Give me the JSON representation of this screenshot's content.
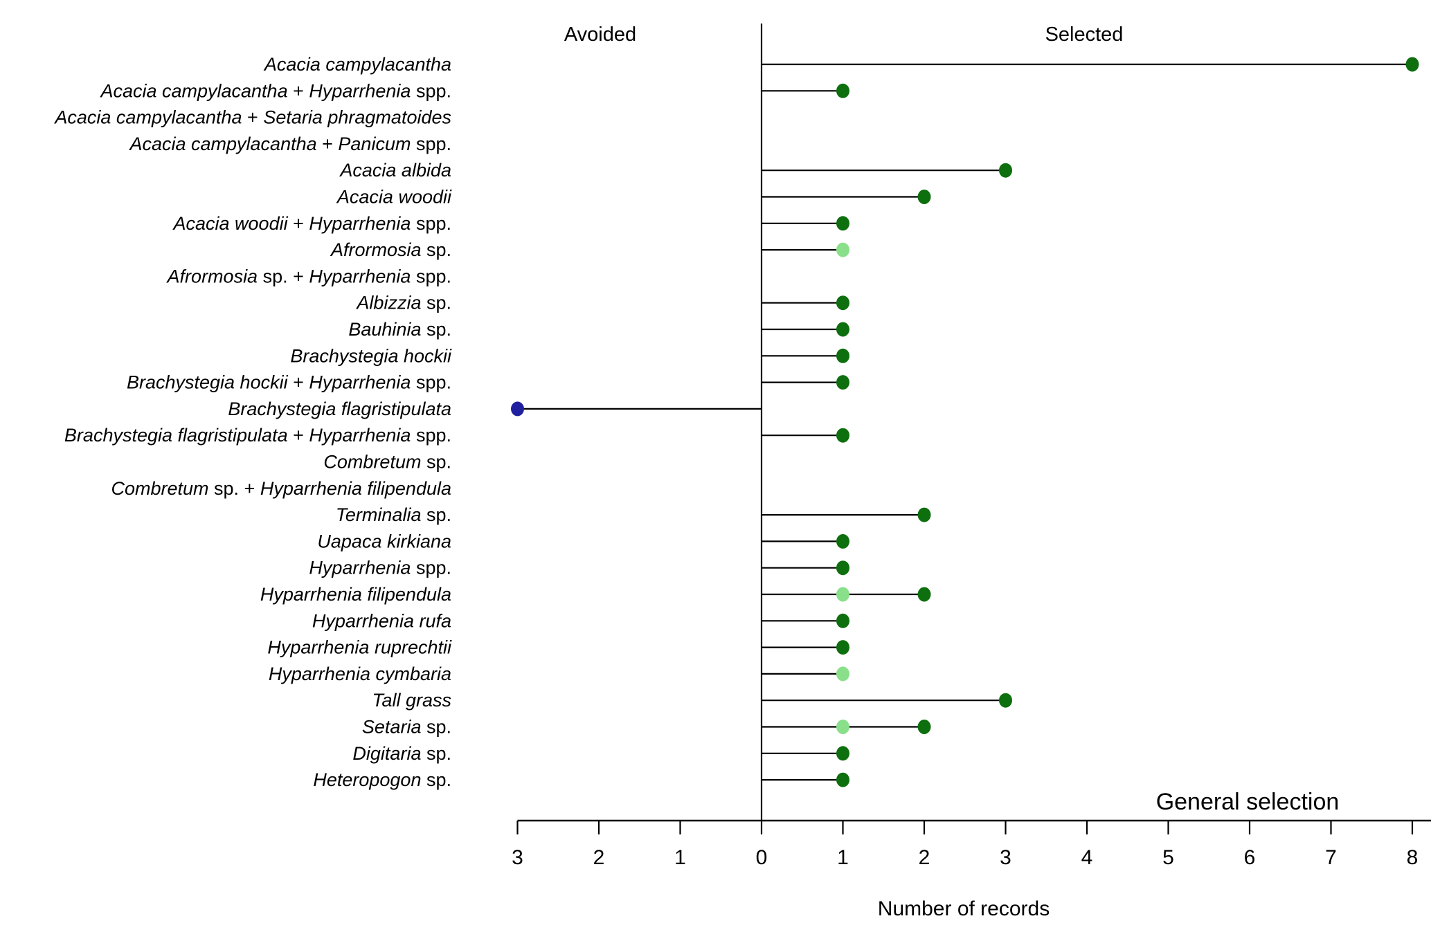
{
  "chart_data": {
    "type": "lollipop",
    "orientation": "horizontal-diverging",
    "section_labels": {
      "left": "Avoided",
      "right": "Selected"
    },
    "xlabel": "Number of records",
    "annotation": "General selection",
    "axis": {
      "tick_values": [
        -3,
        -2,
        -1,
        0,
        1,
        2,
        3,
        4,
        5,
        6,
        7,
        8
      ],
      "tick_labels": [
        "3",
        "2",
        "1",
        "0",
        "1",
        "2",
        "3",
        "4",
        "5",
        "6",
        "7",
        "8"
      ],
      "xlim": [
        -3,
        8.5
      ],
      "grid": false
    },
    "colors": {
      "selected_dark": "#0d6f0d",
      "selected_light": "#8ae08a",
      "avoided_blue": "#1f1f9f",
      "axis_line": "#000000",
      "text": "#000000",
      "background": "#ffffff"
    },
    "rows": [
      {
        "label_plain": "Acacia campylacantha",
        "label_segments": [
          {
            "text": "Acacia campylacantha",
            "italic": true
          }
        ],
        "points": [
          {
            "value": 8,
            "side": "selected",
            "color": "selected_dark"
          }
        ]
      },
      {
        "label_plain": "Acacia campylacantha + Hyparrhenia spp.",
        "label_segments": [
          {
            "text": "Acacia campylacantha",
            "italic": true
          },
          {
            "text": " + ",
            "italic": false
          },
          {
            "text": "Hyparrhenia",
            "italic": true
          },
          {
            "text": " spp.",
            "italic": false
          }
        ],
        "points": [
          {
            "value": 1,
            "side": "selected",
            "color": "selected_dark"
          }
        ]
      },
      {
        "label_plain": "Acacia campylacantha + Setaria phragmatoides",
        "label_segments": [
          {
            "text": "Acacia campylacantha",
            "italic": true
          },
          {
            "text": " + ",
            "italic": false
          },
          {
            "text": "Setaria phragmatoides",
            "italic": true
          }
        ],
        "points": []
      },
      {
        "label_plain": "Acacia campylacantha + Panicum spp.",
        "label_segments": [
          {
            "text": "Acacia campylacantha",
            "italic": true
          },
          {
            "text": " + ",
            "italic": false
          },
          {
            "text": "Panicum",
            "italic": true
          },
          {
            "text": " spp.",
            "italic": false
          }
        ],
        "points": []
      },
      {
        "label_plain": "Acacia albida",
        "label_segments": [
          {
            "text": "Acacia albida",
            "italic": true
          }
        ],
        "points": [
          {
            "value": 3,
            "side": "selected",
            "color": "selected_dark"
          }
        ]
      },
      {
        "label_plain": "Acacia woodii",
        "label_segments": [
          {
            "text": "Acacia woodii",
            "italic": true
          }
        ],
        "points": [
          {
            "value": 2,
            "side": "selected",
            "color": "selected_dark"
          }
        ]
      },
      {
        "label_plain": "Acacia woodii + Hyparrhenia spp.",
        "label_segments": [
          {
            "text": "Acacia woodii",
            "italic": true
          },
          {
            "text": " + ",
            "italic": false
          },
          {
            "text": "Hyparrhenia",
            "italic": true
          },
          {
            "text": " spp.",
            "italic": false
          }
        ],
        "points": [
          {
            "value": 1,
            "side": "selected",
            "color": "selected_dark"
          }
        ]
      },
      {
        "label_plain": "Afrormosia sp.",
        "label_segments": [
          {
            "text": "Afrormosia",
            "italic": true
          },
          {
            "text": " sp.",
            "italic": false
          }
        ],
        "points": [
          {
            "value": 1,
            "side": "selected",
            "color": "selected_light"
          }
        ]
      },
      {
        "label_plain": "Afrormosia sp. + Hyparrhenia spp.",
        "label_segments": [
          {
            "text": "Afrormosia",
            "italic": true
          },
          {
            "text": " sp. + ",
            "italic": false
          },
          {
            "text": "Hyparrhenia",
            "italic": true
          },
          {
            "text": " spp.",
            "italic": false
          }
        ],
        "points": []
      },
      {
        "label_plain": "Albizzia sp.",
        "label_segments": [
          {
            "text": "Albizzia",
            "italic": true
          },
          {
            "text": " sp.",
            "italic": false
          }
        ],
        "points": [
          {
            "value": 1,
            "side": "selected",
            "color": "selected_dark"
          }
        ]
      },
      {
        "label_plain": "Bauhinia sp.",
        "label_segments": [
          {
            "text": "Bauhinia",
            "italic": true
          },
          {
            "text": " sp.",
            "italic": false
          }
        ],
        "points": [
          {
            "value": 1,
            "side": "selected",
            "color": "selected_dark"
          }
        ]
      },
      {
        "label_plain": "Brachystegia hockii",
        "label_segments": [
          {
            "text": "Brachystegia hockii",
            "italic": true
          }
        ],
        "points": [
          {
            "value": 1,
            "side": "selected",
            "color": "selected_dark"
          }
        ]
      },
      {
        "label_plain": "Brachystegia hockii + Hyparrhenia spp.",
        "label_segments": [
          {
            "text": "Brachystegia hockii",
            "italic": true
          },
          {
            "text": " + ",
            "italic": false
          },
          {
            "text": "Hyparrhenia",
            "italic": true
          },
          {
            "text": " spp.",
            "italic": false
          }
        ],
        "points": [
          {
            "value": 1,
            "side": "selected",
            "color": "selected_dark"
          }
        ]
      },
      {
        "label_plain": "Brachystegia flagristipulata",
        "label_segments": [
          {
            "text": "Brachystegia flagristipulata",
            "italic": true
          }
        ],
        "points": [
          {
            "value": 3,
            "side": "avoided",
            "color": "avoided_blue"
          }
        ]
      },
      {
        "label_plain": "Brachystegia flagristipulata + Hyparrhenia spp.",
        "label_segments": [
          {
            "text": "Brachystegia flagristipulata",
            "italic": true
          },
          {
            "text": " + ",
            "italic": false
          },
          {
            "text": "Hyparrhenia",
            "italic": true
          },
          {
            "text": " spp.",
            "italic": false
          }
        ],
        "points": [
          {
            "value": 1,
            "side": "selected",
            "color": "selected_dark"
          }
        ]
      },
      {
        "label_plain": "Combretum sp.",
        "label_segments": [
          {
            "text": "Combretum",
            "italic": true
          },
          {
            "text": " sp.",
            "italic": false
          }
        ],
        "points": []
      },
      {
        "label_plain": "Combretum sp. + Hyparrhenia filipendula",
        "label_segments": [
          {
            "text": "Combretum",
            "italic": true
          },
          {
            "text": " sp. + ",
            "italic": false
          },
          {
            "text": "Hyparrhenia filipendula",
            "italic": true
          }
        ],
        "points": []
      },
      {
        "label_plain": "Terminalia sp.",
        "label_segments": [
          {
            "text": "Terminalia",
            "italic": true
          },
          {
            "text": " sp.",
            "italic": false
          }
        ],
        "points": [
          {
            "value": 2,
            "side": "selected",
            "color": "selected_dark"
          }
        ]
      },
      {
        "label_plain": "Uapaca kirkiana",
        "label_segments": [
          {
            "text": "Uapaca kirkiana",
            "italic": true
          }
        ],
        "points": [
          {
            "value": 1,
            "side": "selected",
            "color": "selected_dark"
          }
        ]
      },
      {
        "label_plain": "Hyparrhenia spp.",
        "label_segments": [
          {
            "text": "Hyparrhenia",
            "italic": true
          },
          {
            "text": " spp.",
            "italic": false
          }
        ],
        "points": [
          {
            "value": 1,
            "side": "selected",
            "color": "selected_dark"
          }
        ]
      },
      {
        "label_plain": "Hyparrhenia filipendula",
        "label_segments": [
          {
            "text": "Hyparrhenia filipendula",
            "italic": true
          }
        ],
        "points": [
          {
            "value": 1,
            "side": "selected",
            "color": "selected_light"
          },
          {
            "value": 2,
            "side": "selected",
            "color": "selected_dark"
          }
        ]
      },
      {
        "label_plain": "Hyparrhenia rufa",
        "label_segments": [
          {
            "text": "Hyparrhenia rufa",
            "italic": true
          }
        ],
        "points": [
          {
            "value": 1,
            "side": "selected",
            "color": "selected_dark"
          }
        ]
      },
      {
        "label_plain": "Hyparrhenia ruprechtii",
        "label_segments": [
          {
            "text": "Hyparrhenia ruprechtii",
            "italic": true
          }
        ],
        "points": [
          {
            "value": 1,
            "side": "selected",
            "color": "selected_dark"
          }
        ]
      },
      {
        "label_plain": "Hyparrhenia cymbaria",
        "label_segments": [
          {
            "text": "Hyparrhenia cymbaria",
            "italic": true
          }
        ],
        "points": [
          {
            "value": 1,
            "side": "selected",
            "color": "selected_light"
          }
        ]
      },
      {
        "label_plain": "Tall grass",
        "label_segments": [
          {
            "text": "Tall grass",
            "italic": true
          }
        ],
        "points": [
          {
            "value": 3,
            "side": "selected",
            "color": "selected_dark"
          }
        ]
      },
      {
        "label_plain": "Setaria sp.",
        "label_segments": [
          {
            "text": "Setaria",
            "italic": true
          },
          {
            "text": " sp.",
            "italic": false
          }
        ],
        "points": [
          {
            "value": 1,
            "side": "selected",
            "color": "selected_light"
          },
          {
            "value": 2,
            "side": "selected",
            "color": "selected_dark"
          }
        ]
      },
      {
        "label_plain": "Digitaria sp.",
        "label_segments": [
          {
            "text": "Digitaria",
            "italic": true
          },
          {
            "text": " sp.",
            "italic": false
          }
        ],
        "points": [
          {
            "value": 1,
            "side": "selected",
            "color": "selected_dark"
          }
        ]
      },
      {
        "label_plain": "Heteropogon sp.",
        "label_segments": [
          {
            "text": "Heteropogon",
            "italic": true
          },
          {
            "text": " sp.",
            "italic": false
          }
        ],
        "points": [
          {
            "value": 1,
            "side": "selected",
            "color": "selected_dark"
          }
        ]
      }
    ]
  }
}
